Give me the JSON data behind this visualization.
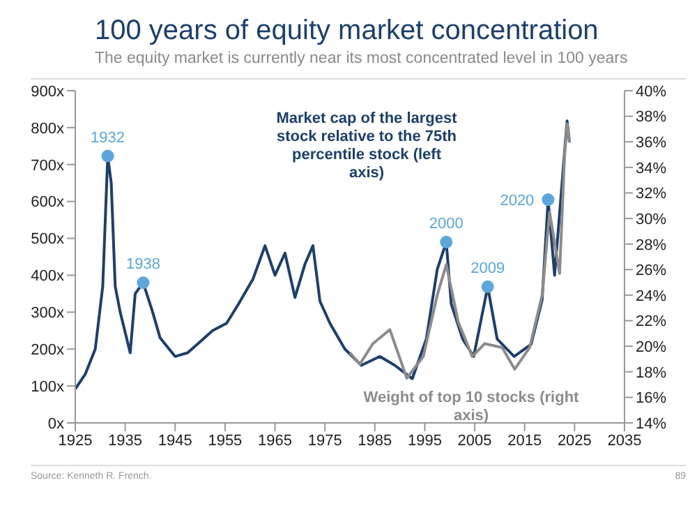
{
  "chart_data": {
    "type": "line",
    "title": "100 years of equity market concentration",
    "subtitle": "The equity market is currently near its most concentrated level in 100 years",
    "series": [
      {
        "name": "Market cap of the largest stock relative to the 75th percentile stock (left axis)",
        "color": "#1c3f6e",
        "x": [
          1925,
          1927,
          1929,
          1930.5,
          1931.5,
          1932.2,
          1933,
          1934,
          1936,
          1937,
          1938.6,
          1940.5,
          1942,
          1945,
          1947.5,
          1950,
          1952.5,
          1955.3,
          1957.6,
          1960.6,
          1963,
          1965,
          1967,
          1969,
          1971,
          1972.6,
          1974,
          1976,
          1979,
          1982.3,
          1986,
          1989,
          1992.5,
          1995.3,
          1997.5,
          1999.3,
          2000.3,
          2002.6,
          2004.8,
          2007.6,
          2009.5,
          2012.9,
          2016.3,
          2018.5,
          2019.7,
          2021,
          2023,
          2023.5,
          2024
        ],
        "values": [
          92,
          132,
          200,
          370,
          723,
          650,
          370,
          300,
          190,
          350,
          380,
          300,
          230,
          180,
          190,
          220,
          250,
          270,
          320,
          390,
          480,
          400,
          460,
          340,
          430,
          480,
          330,
          270,
          200,
          156,
          180,
          156,
          120,
          227,
          416,
          490,
          322,
          227,
          180,
          369,
          227,
          180,
          213,
          333,
          605,
          400,
          735,
          818,
          760
        ]
      },
      {
        "name": "Weight of top 10 stocks (right axis)",
        "color": "#8c8c8c",
        "axis": "y2",
        "x": [
          1980,
          1982,
          1984.6,
          1988,
          1991.4,
          1994.7,
          1997.5,
          1999.3,
          2001.7,
          2004.5,
          2007,
          2010.5,
          2013,
          2016,
          2018.5,
          2020,
          2022,
          2023,
          2023.5,
          2024
        ],
        "values": [
          19.5,
          18.6,
          20.2,
          21.3,
          17.5,
          19.2,
          24,
          26.4,
          21.9,
          19.2,
          20.2,
          19.9,
          18.2,
          19.9,
          24,
          30.5,
          25.7,
          34.9,
          37.4,
          36
        ]
      }
    ],
    "xlim": [
      1925,
      2035
    ],
    "xticks": [
      1925,
      1935,
      1945,
      1955,
      1965,
      1975,
      1985,
      1995,
      2005,
      2015,
      2025,
      2035
    ],
    "ylim": [
      0,
      900
    ],
    "yticks": [
      {
        "value": 0,
        "label": "0x"
      },
      {
        "value": 100,
        "label": "100x"
      },
      {
        "value": 200,
        "label": "200x"
      },
      {
        "value": 300,
        "label": "300x"
      },
      {
        "value": 400,
        "label": "400x"
      },
      {
        "value": 500,
        "label": "500x"
      },
      {
        "value": 600,
        "label": "600x"
      },
      {
        "value": 700,
        "label": "700x"
      },
      {
        "value": 800,
        "label": "800x"
      },
      {
        "value": 900,
        "label": "900x"
      }
    ],
    "y2lim": [
      14,
      40
    ],
    "y2ticks": [
      {
        "value": 14,
        "label": "14%"
      },
      {
        "value": 16,
        "label": "16%"
      },
      {
        "value": 18,
        "label": "18%"
      },
      {
        "value": 20,
        "label": "20%"
      },
      {
        "value": 22,
        "label": "22%"
      },
      {
        "value": 24,
        "label": "24%"
      },
      {
        "value": 26,
        "label": "26%"
      },
      {
        "value": 28,
        "label": "28%"
      },
      {
        "value": 30,
        "label": "30%"
      },
      {
        "value": 32,
        "label": "32%"
      },
      {
        "value": 34,
        "label": "34%"
      },
      {
        "value": 36,
        "label": "36%"
      },
      {
        "value": 38,
        "label": "38%"
      },
      {
        "value": 40,
        "label": "40%"
      }
    ],
    "annotations": [
      {
        "text": "1932",
        "x": 1931.5,
        "y": 723
      },
      {
        "text": "1938",
        "x": 1938.6,
        "y": 380
      },
      {
        "text": "2000",
        "x": 1999.3,
        "y": 490
      },
      {
        "text": "2009",
        "x": 2007.6,
        "y": 369
      },
      {
        "text": "2020",
        "x": 2019.7,
        "y": 605
      },
      "Source: Kenneth R. French.",
      "89"
    ],
    "marker": "none",
    "grid": false,
    "line_style": "solid"
  }
}
